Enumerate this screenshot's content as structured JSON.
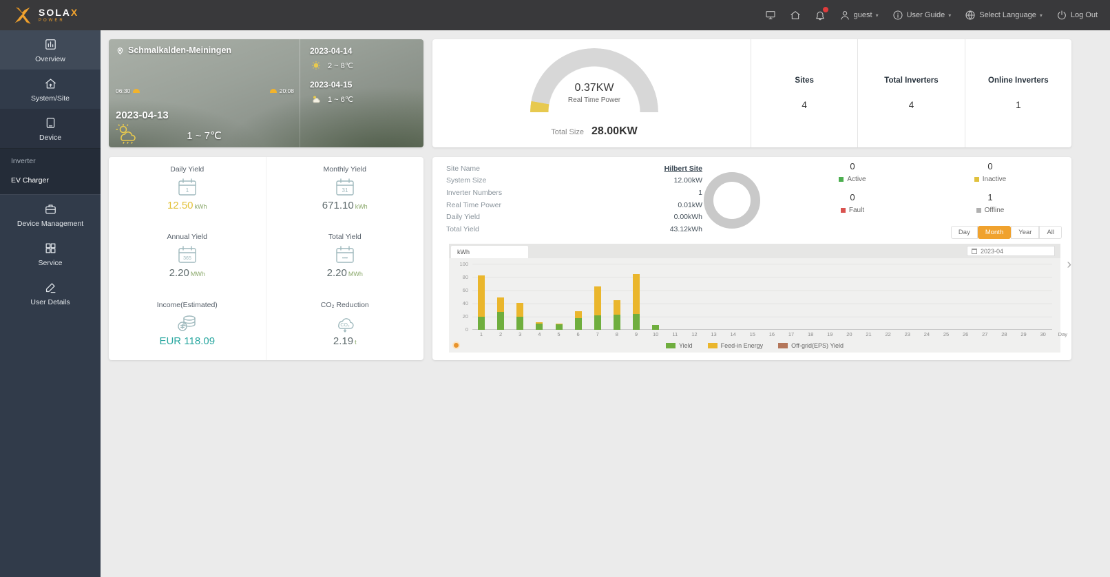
{
  "topbar": {
    "brand": "SOLA",
    "brand_x": "X",
    "brand_sub": "POWER",
    "username": "guest",
    "user_guide": "User Guide",
    "language": "Select Language",
    "logout": "Log Out"
  },
  "sidebar": {
    "items": [
      {
        "label": "Overview",
        "icon": "overview-icon",
        "active": false,
        "first": true
      },
      {
        "label": "System/Site",
        "icon": "site-icon",
        "active": false
      },
      {
        "label": "Device",
        "icon": "device-icon",
        "active": true
      },
      {
        "label": "Device Management",
        "icon": "device-management-icon",
        "active": false
      },
      {
        "label": "Service",
        "icon": "service-icon",
        "active": false
      },
      {
        "label": "User Details",
        "icon": "user-details-icon",
        "active": false
      }
    ],
    "device_submenu": [
      {
        "label": "Inverter",
        "bright": false
      },
      {
        "label": "EV Charger",
        "bright": true
      }
    ]
  },
  "weather": {
    "location": "Schmalkalden-Meiningen",
    "sunrise": "06:30",
    "sunset": "20:08",
    "today": {
      "date": "2023-04-13",
      "temp": "1 ~ 7℃"
    },
    "forecast": [
      {
        "date": "2023-04-14",
        "temp": "2 ~ 8℃"
      },
      {
        "date": "2023-04-15",
        "temp": "1 ~ 6℃"
      }
    ]
  },
  "summary": {
    "real_time_power": "0.37KW",
    "real_time_power_label": "Real Time Power",
    "total_size_label": "Total Size",
    "total_size": "28.00KW",
    "stats": [
      {
        "label": "Sites",
        "value": "4"
      },
      {
        "label": "Total Inverters",
        "value": "4"
      },
      {
        "label": "Online Inverters",
        "value": "1"
      }
    ]
  },
  "yield_cards": [
    {
      "label": "Daily Yield",
      "value": "12.50",
      "unit": "kWh",
      "value_color": "#e2c23a",
      "icon": "calendar-day-icon"
    },
    {
      "label": "Monthly Yield",
      "value": "671.10",
      "unit": "kWh",
      "value_color": "#5f6b6d",
      "icon": "calendar-month-icon"
    },
    {
      "label": "Annual Yield",
      "value": "2.20",
      "unit": "MWh",
      "value_color": "#5f6b6d",
      "icon": "calendar-year-icon"
    },
    {
      "label": "Total Yield",
      "value": "2.20",
      "unit": "MWh",
      "value_color": "#5f6b6d",
      "icon": "calendar-total-icon"
    },
    {
      "label": "Income(Estimated)",
      "value": "EUR 118.09",
      "unit": "",
      "value_color": "#2aa7a0",
      "icon": "income-icon"
    },
    {
      "label": "CO₂ Reduction",
      "value": "2.19",
      "unit": "t",
      "value_color": "#5f6b6d",
      "icon": "co2-icon"
    }
  ],
  "site_panel": {
    "rows": [
      {
        "label": "Site Name",
        "value": "Hilbert Site",
        "link": true
      },
      {
        "label": "System Size",
        "value": "12.00kW",
        "link": false
      },
      {
        "label": "Inverter Numbers",
        "value": "1",
        "link": false
      },
      {
        "label": "Real Time Power",
        "value": "0.01kW",
        "link": false
      },
      {
        "label": "Daily Yield",
        "value": "0.00kWh",
        "link": false
      },
      {
        "label": "Total Yield",
        "value": "43.12kWh",
        "link": false
      }
    ],
    "statuses": [
      {
        "label": "Active",
        "value": "0",
        "color": "#4caf50"
      },
      {
        "label": "Inactive",
        "value": "0",
        "color": "#e0c13d"
      },
      {
        "label": "Fault",
        "value": "0",
        "color": "#d9534f"
      },
      {
        "label": "Offline",
        "value": "1",
        "color": "#b0b0b0"
      }
    ],
    "period_tabs": [
      {
        "label": "Day",
        "active": false
      },
      {
        "label": "Month",
        "active": true
      },
      {
        "label": "Year",
        "active": false
      },
      {
        "label": "All",
        "active": false
      }
    ],
    "unit_tab": "kWh",
    "date": "2023-04"
  },
  "chart_data": {
    "type": "bar",
    "stacked": true,
    "title": "",
    "x": [
      1,
      2,
      3,
      4,
      5,
      6,
      7,
      8,
      9,
      10,
      11,
      12,
      13,
      14,
      15,
      16,
      17,
      18,
      19,
      20,
      21,
      22,
      23,
      24,
      25,
      26,
      27,
      28,
      29,
      30
    ],
    "xlabel": "Day",
    "ylabel": "kWh",
    "ylim": [
      0,
      100
    ],
    "yticks": [
      0,
      20,
      40,
      60,
      80,
      100
    ],
    "grid": true,
    "legend_position": "bottom",
    "series": [
      {
        "name": "Yield",
        "color": "#6fae3e",
        "values": [
          20,
          27,
          20,
          9,
          8,
          18,
          22,
          23,
          24,
          7,
          0,
          0,
          0,
          0,
          0,
          0,
          0,
          0,
          0,
          0,
          0,
          0,
          0,
          0,
          0,
          0,
          0,
          0,
          0,
          0
        ]
      },
      {
        "name": "Feed-in Energy",
        "color": "#eab62c",
        "values": [
          62,
          22,
          21,
          3,
          1,
          10,
          44,
          22,
          60,
          0,
          0,
          0,
          0,
          0,
          0,
          0,
          0,
          0,
          0,
          0,
          0,
          0,
          0,
          0,
          0,
          0,
          0,
          0,
          0,
          0
        ]
      },
      {
        "name": "Off-grid(EPS) Yield",
        "color": "#b4765a",
        "values": [
          0,
          0,
          0,
          0,
          0,
          0,
          0,
          0,
          0,
          0,
          0,
          0,
          0,
          0,
          0,
          0,
          0,
          0,
          0,
          0,
          0,
          0,
          0,
          0,
          0,
          0,
          0,
          0,
          0,
          0
        ]
      }
    ]
  }
}
